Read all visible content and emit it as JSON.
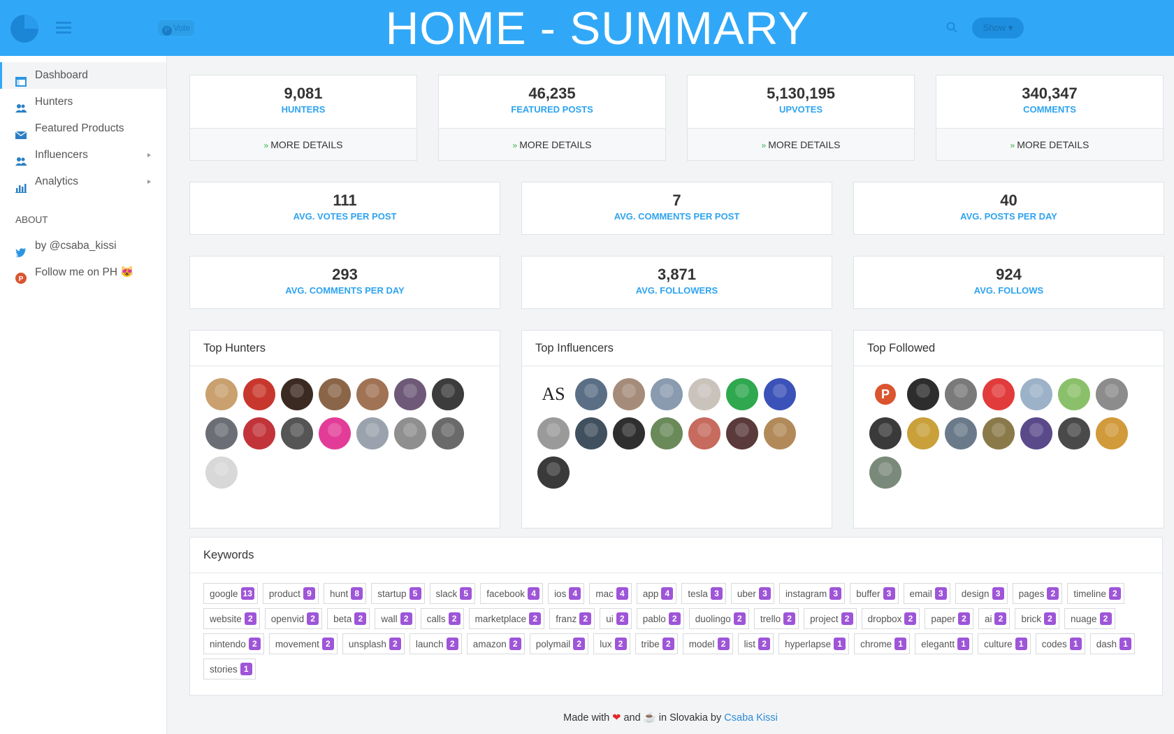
{
  "header": {
    "title": "HOME - SUMMARY",
    "vote_label": "Vote",
    "show_label": "Show",
    "brand_color": "#31a8f7"
  },
  "sidebar": {
    "items": [
      {
        "label": "Dashboard",
        "icon": "dashboard-icon",
        "active": true
      },
      {
        "label": "Hunters",
        "icon": "users-icon"
      },
      {
        "label": "Featured Products",
        "icon": "envelope-icon"
      },
      {
        "label": "Influencers",
        "icon": "users-icon",
        "submenu": true
      },
      {
        "label": "Analytics",
        "icon": "bar-chart-icon",
        "submenu": true
      }
    ],
    "about_title": "ABOUT",
    "about_items": [
      {
        "label": "by @csaba_kissi",
        "icon": "twitter-icon"
      },
      {
        "label": "Follow me on PH",
        "icon": "producthunt-icon",
        "emoji": "😻"
      }
    ]
  },
  "stats_top": [
    {
      "value": "9,081",
      "label": "HUNTERS",
      "footer": "MORE DETAILS"
    },
    {
      "value": "46,235",
      "label": "FEATURED POSTS",
      "footer": "MORE DETAILS"
    },
    {
      "value": "5,130,195",
      "label": "UPVOTES",
      "footer": "MORE DETAILS"
    },
    {
      "value": "340,347",
      "label": "COMMENTS",
      "footer": "MORE DETAILS"
    }
  ],
  "stats_mid": [
    {
      "value": "111",
      "label": "AVG. VOTES PER POST"
    },
    {
      "value": "7",
      "label": "AVG. COMMENTS PER POST"
    },
    {
      "value": "40",
      "label": "AVG. POSTS PER DAY"
    },
    {
      "value": "293",
      "label": "AVG. COMMENTS PER DAY"
    },
    {
      "value": "3,871",
      "label": "AVG. FOLLOWERS"
    },
    {
      "value": "924",
      "label": "AVG. FOLLOWS"
    }
  ],
  "panels": [
    {
      "title": "Top Hunters",
      "avatars": [
        "#c9a06e",
        "#c8372d",
        "#3b2a22",
        "#8a6548",
        "#a07355",
        "#6e5a78",
        "#3c3c3c",
        "#6b6f75",
        "#c2343a",
        "#555555",
        "#e33c98",
        "#9aa3ad",
        "#8f8f8f",
        "#6a6a6a",
        "#d8d8d8"
      ]
    },
    {
      "title": "Top Influencers",
      "avatars": [
        "AS",
        "#5a6f86",
        "#a58c7a",
        "#8a9bb0",
        "#c9c3bc",
        "#2fa84f",
        "#3b52b8",
        "#9a9a9a",
        "#40505e",
        "#2f2f2f",
        "#6a8a5a",
        "#c66b5e",
        "#5a3a3a",
        "#b28a5a",
        "#3a3a3a"
      ]
    },
    {
      "title": "Top Followed",
      "avatars": [
        "P",
        "#2d2d2d",
        "#7a7a7a",
        "#e23b3b",
        "#9cb2c8",
        "#8ac06a",
        "#8c8c8c",
        "#3a3a3a",
        "#c9a03a",
        "#6a7a8a",
        "#8a7a4a",
        "#5a4a8a",
        "#4a4a4a",
        "#d19a3a",
        "#7a8a7a"
      ]
    }
  ],
  "keywords": {
    "title": "Keywords",
    "tags": [
      {
        "name": "google",
        "count": "13"
      },
      {
        "name": "product",
        "count": "9"
      },
      {
        "name": "hunt",
        "count": "8"
      },
      {
        "name": "startup",
        "count": "5"
      },
      {
        "name": "slack",
        "count": "5"
      },
      {
        "name": "facebook",
        "count": "4"
      },
      {
        "name": "ios",
        "count": "4"
      },
      {
        "name": "mac",
        "count": "4"
      },
      {
        "name": "app",
        "count": "4"
      },
      {
        "name": "tesla",
        "count": "3"
      },
      {
        "name": "uber",
        "count": "3"
      },
      {
        "name": "instagram",
        "count": "3"
      },
      {
        "name": "buffer",
        "count": "3"
      },
      {
        "name": "email",
        "count": "3"
      },
      {
        "name": "design",
        "count": "3"
      },
      {
        "name": "pages",
        "count": "2"
      },
      {
        "name": "timeline",
        "count": "2"
      },
      {
        "name": "website",
        "count": "2"
      },
      {
        "name": "openvid",
        "count": "2"
      },
      {
        "name": "beta",
        "count": "2"
      },
      {
        "name": "wall",
        "count": "2"
      },
      {
        "name": "calls",
        "count": "2"
      },
      {
        "name": "marketplace",
        "count": "2"
      },
      {
        "name": "franz",
        "count": "2"
      },
      {
        "name": "ui",
        "count": "2"
      },
      {
        "name": "pablo",
        "count": "2"
      },
      {
        "name": "duolingo",
        "count": "2"
      },
      {
        "name": "trello",
        "count": "2"
      },
      {
        "name": "project",
        "count": "2"
      },
      {
        "name": "dropbox",
        "count": "2"
      },
      {
        "name": "paper",
        "count": "2"
      },
      {
        "name": "ai",
        "count": "2"
      },
      {
        "name": "brick",
        "count": "2"
      },
      {
        "name": "nuage",
        "count": "2"
      },
      {
        "name": "nintendo",
        "count": "2"
      },
      {
        "name": "movement",
        "count": "2"
      },
      {
        "name": "unsplash",
        "count": "2"
      },
      {
        "name": "launch",
        "count": "2"
      },
      {
        "name": "amazon",
        "count": "2"
      },
      {
        "name": "polymail",
        "count": "2"
      },
      {
        "name": "lux",
        "count": "2"
      },
      {
        "name": "tribe",
        "count": "2"
      },
      {
        "name": "model",
        "count": "2"
      },
      {
        "name": "list",
        "count": "2"
      },
      {
        "name": "hyperlapse",
        "count": "1"
      },
      {
        "name": "chrome",
        "count": "1"
      },
      {
        "name": "elegantt",
        "count": "1"
      },
      {
        "name": "culture",
        "count": "1"
      },
      {
        "name": "codes",
        "count": "1"
      },
      {
        "name": "dash",
        "count": "1"
      },
      {
        "name": "stories",
        "count": "1"
      }
    ]
  },
  "footer": {
    "made_with": "Made with",
    "and": "and",
    "in_country": "in Slovakia by",
    "author": "Csaba Kissi"
  }
}
